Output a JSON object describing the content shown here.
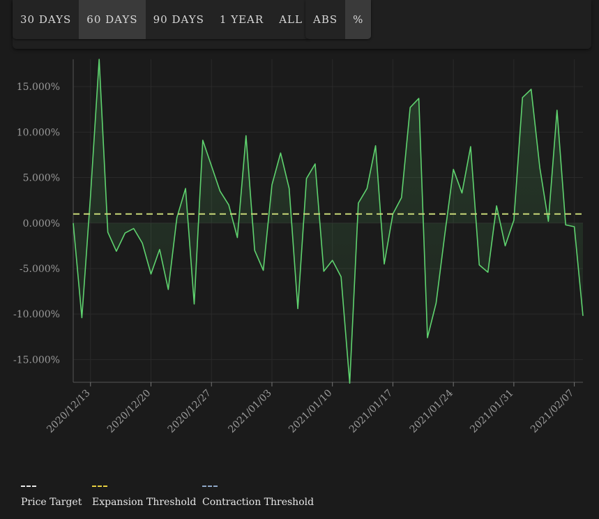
{
  "toolbar": {
    "ranges": [
      "30 DAYS",
      "60 DAYS",
      "90 DAYS",
      "1 YEAR",
      "ALL"
    ],
    "active_range": "60 DAYS",
    "modes": [
      "ABS",
      "%"
    ],
    "active_mode": "%"
  },
  "colors": {
    "series": "#5fd36f",
    "expansion": "#c8d878",
    "price_target": "#e8e8e8",
    "contraction": "#8fa8c8"
  },
  "legend": [
    {
      "label": "Price Target",
      "color": "#e8e8e8"
    },
    {
      "label": "Expansion Threshold",
      "color": "#e8d040"
    },
    {
      "label": "Contraction Threshold",
      "color": "#8fa8c8"
    }
  ],
  "chart_data": {
    "type": "area",
    "x_ticks": [
      "2020/12/13",
      "2020/12/20",
      "2020/12/27",
      "2021/01/03",
      "2021/01/10",
      "2021/01/17",
      "2021/01/24",
      "2021/01/31",
      "2021/02/07"
    ],
    "y_ticks": [
      "15.000%",
      "10.000%",
      "5.000%",
      "0.000%",
      "-5.000%",
      "-10.000%",
      "-15.000%"
    ],
    "y_tick_values": [
      15,
      10,
      5,
      0,
      -5,
      -10,
      -15
    ],
    "ylim": [
      -17.5,
      18
    ],
    "x_start": "2020/12/11",
    "x_end": "2021/02/08",
    "grid": true,
    "expansion_threshold": 1,
    "series": [
      {
        "values": [
          0.0,
          -10.4,
          3.0,
          18.0,
          -1.0,
          -3.1,
          -1.1,
          -0.6,
          -2.2,
          -5.6,
          -2.9,
          -7.3,
          0.6,
          3.8,
          -8.9,
          9.1,
          6.3,
          3.5,
          2.0,
          -1.6,
          9.6,
          -3.0,
          -5.2,
          4.2,
          7.7,
          3.8,
          -9.4,
          4.9,
          6.5,
          -5.3,
          -4.1,
          -5.9,
          -17.6,
          2.2,
          3.8,
          8.5,
          -4.5,
          1.0,
          2.8,
          12.7,
          13.7,
          -12.6,
          -8.8,
          -1.3,
          5.9,
          3.3,
          8.4,
          -4.6,
          -5.4,
          1.9,
          -2.5,
          0.3,
          13.8,
          14.7,
          6.1,
          0.2,
          12.4,
          -0.2,
          -0.4,
          -10.2
        ]
      }
    ]
  }
}
